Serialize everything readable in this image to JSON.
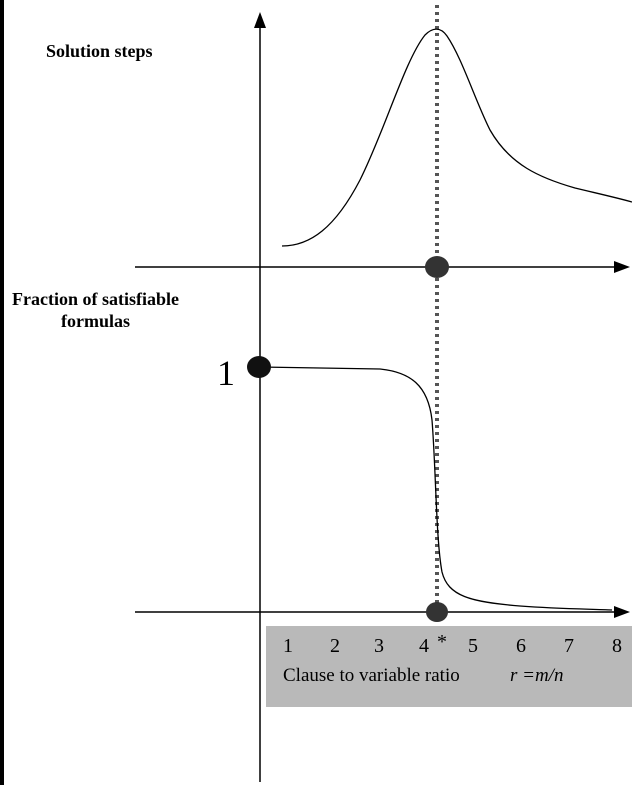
{
  "top_plot": {
    "title": "Solution steps"
  },
  "bottom_plot": {
    "title_line1": "Fraction of satisfiable",
    "title_line2": "formulas",
    "y_marker_label": "1"
  },
  "x_axis": {
    "ticks": [
      "1",
      "2",
      "3",
      "4",
      "*",
      "5",
      "6",
      "7",
      "8"
    ],
    "caption": "Clause to variable ratio",
    "formula": "r =m/n"
  },
  "colors": {
    "axis_box": "#b9b9b9",
    "marker": "#333333",
    "curve": "#000000"
  }
}
